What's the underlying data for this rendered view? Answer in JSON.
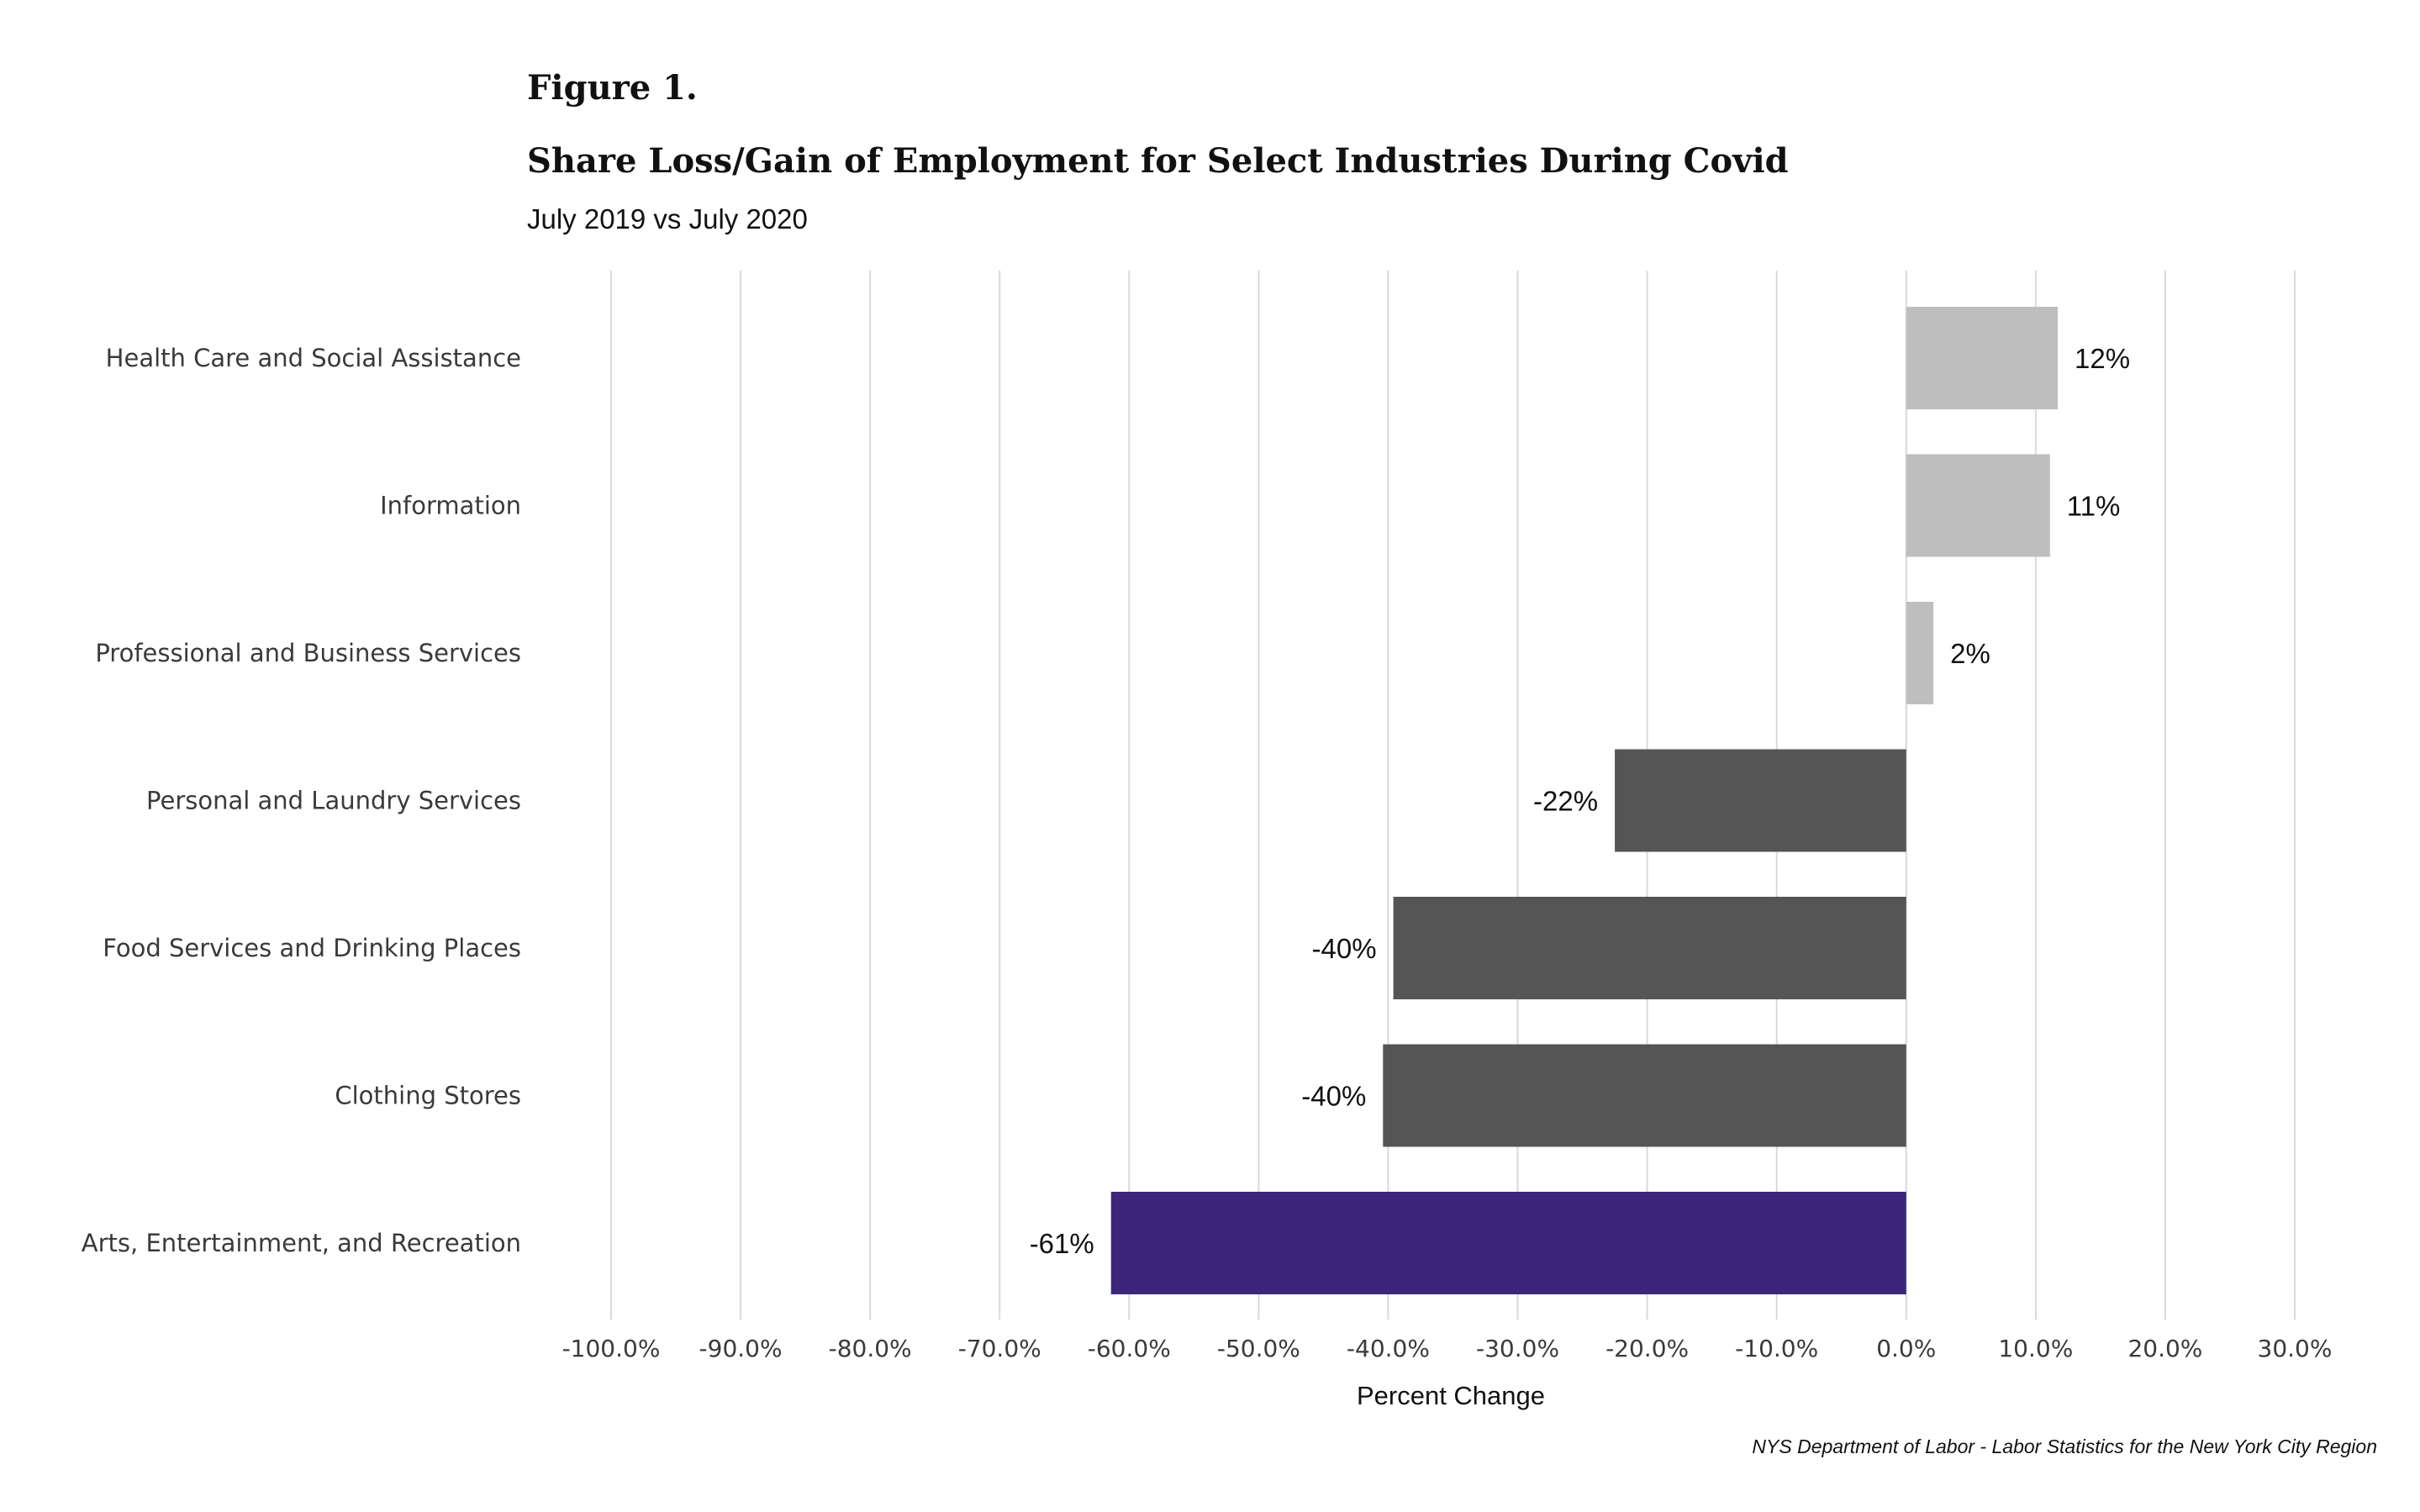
{
  "figure_label": "Figure 1.",
  "source": "NYS Department of Labor - Labor Statistics for the New York City Region",
  "colors": {
    "positive": "#bebebe",
    "negative": "#555555",
    "highlight": "#3d267a",
    "grid": "#d9d9d9"
  },
  "chart_data": {
    "type": "bar",
    "orientation": "horizontal",
    "title": "Share Loss/Gain of Employment for Select Industries During Covid",
    "subtitle": "July 2019 vs July 2020",
    "xlabel": "Percent Change",
    "ylabel": "",
    "xlim": [
      -100,
      30
    ],
    "x_ticks": [
      -100,
      -90,
      -80,
      -70,
      -60,
      -50,
      -40,
      -30,
      -20,
      -10,
      0,
      10,
      20,
      30
    ],
    "x_tick_labels": [
      "-100.0%",
      "-90.0%",
      "-80.0%",
      "-70.0%",
      "-60.0%",
      "-50.0%",
      "-40.0%",
      "-30.0%",
      "-20.0%",
      "-10.0%",
      "0.0%",
      "10.0%",
      "20.0%",
      "30.0%"
    ],
    "grid": "vertical",
    "legend": "none",
    "categories": [
      "Health Care and Social Assistance",
      "Information",
      "Professional and Business Services",
      "Personal and Laundry Services",
      "Food Services and Drinking Places",
      "Clothing Stores",
      "Arts, Entertainment, and Recreation"
    ],
    "values": [
      11.7,
      11.1,
      2.1,
      -22.5,
      -39.6,
      -40.4,
      -61.4
    ],
    "value_labels": [
      "12%",
      "11%",
      "2%",
      "-22%",
      "-40%",
      "-40%",
      "-61%"
    ],
    "bar_colors": [
      "positive",
      "positive",
      "positive",
      "negative",
      "negative",
      "negative",
      "highlight"
    ]
  }
}
